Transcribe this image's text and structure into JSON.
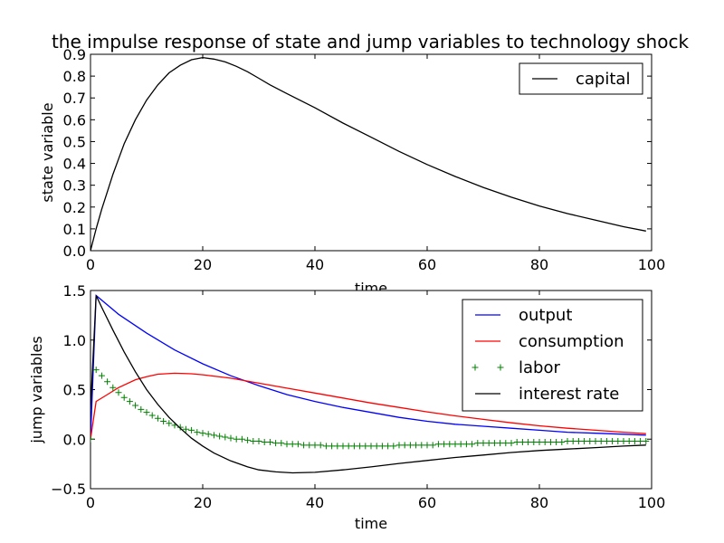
{
  "figure_title": "the impulse response of state and jump variables to technology shock",
  "chart_data": [
    {
      "type": "line",
      "title": "the impulse response of state and jump variables to technology shock",
      "xlabel": "time",
      "ylabel": "state variable",
      "xlim": [
        0,
        100
      ],
      "ylim": [
        0,
        0.9
      ],
      "xticks": [
        "0",
        "20",
        "40",
        "60",
        "80",
        "100"
      ],
      "yticks": [
        "0.0",
        "0.1",
        "0.2",
        "0.3",
        "0.4",
        "0.5",
        "0.6",
        "0.7",
        "0.8",
        "0.9"
      ],
      "legend_position": "top-right",
      "series": [
        {
          "name": "capital",
          "color": "#000000",
          "style": "line",
          "x": [
            0,
            1,
            2,
            3,
            4,
            5,
            6,
            8,
            10,
            12,
            14,
            16,
            18,
            20,
            22,
            24,
            26,
            28,
            30,
            32,
            35,
            40,
            45,
            50,
            55,
            60,
            65,
            70,
            75,
            80,
            85,
            90,
            95,
            99
          ],
          "y": [
            0.0,
            0.1,
            0.19,
            0.27,
            0.35,
            0.42,
            0.49,
            0.6,
            0.69,
            0.76,
            0.815,
            0.85,
            0.875,
            0.885,
            0.878,
            0.865,
            0.845,
            0.82,
            0.79,
            0.76,
            0.72,
            0.655,
            0.585,
            0.52,
            0.455,
            0.395,
            0.34,
            0.29,
            0.245,
            0.205,
            0.17,
            0.14,
            0.11,
            0.09
          ]
        }
      ]
    },
    {
      "type": "line",
      "xlabel": "time",
      "ylabel": "jump variables",
      "xlim": [
        0,
        100
      ],
      "ylim": [
        -0.5,
        1.5
      ],
      "xticks": [
        "0",
        "20",
        "40",
        "60",
        "80",
        "100"
      ],
      "yticks": [
        "−0.5",
        "0.0",
        "0.5",
        "1.0",
        "1.5"
      ],
      "legend_position": "top-right",
      "series": [
        {
          "name": "output",
          "color": "#0000ff",
          "style": "line",
          "x": [
            0,
            1,
            5,
            10,
            15,
            20,
            25,
            30,
            35,
            40,
            45,
            50,
            55,
            60,
            65,
            70,
            75,
            80,
            85,
            90,
            95,
            99
          ],
          "y": [
            0.0,
            1.45,
            1.26,
            1.07,
            0.9,
            0.76,
            0.64,
            0.54,
            0.45,
            0.38,
            0.32,
            0.27,
            0.22,
            0.18,
            0.15,
            0.13,
            0.11,
            0.09,
            0.07,
            0.06,
            0.05,
            0.04
          ]
        },
        {
          "name": "consumption",
          "color": "#ff0000",
          "style": "line",
          "x": [
            0,
            1,
            3,
            5,
            8,
            10,
            12,
            15,
            18,
            20,
            25,
            30,
            35,
            40,
            45,
            50,
            55,
            60,
            65,
            70,
            75,
            80,
            85,
            90,
            95,
            99
          ],
          "y": [
            0.0,
            0.38,
            0.45,
            0.52,
            0.6,
            0.63,
            0.655,
            0.665,
            0.66,
            0.65,
            0.615,
            0.565,
            0.515,
            0.465,
            0.415,
            0.365,
            0.32,
            0.275,
            0.235,
            0.2,
            0.165,
            0.135,
            0.11,
            0.09,
            0.07,
            0.055
          ]
        },
        {
          "name": "labor",
          "color": "#008000",
          "style": "markers",
          "x": [
            0,
            1,
            2,
            3,
            4,
            5,
            6,
            7,
            8,
            9,
            10,
            11,
            12,
            13,
            14,
            15,
            16,
            17,
            18,
            19,
            20,
            21,
            22,
            23,
            24,
            25,
            26,
            27,
            28,
            29,
            30,
            31,
            32,
            33,
            34,
            35,
            36,
            37,
            38,
            39,
            40,
            41,
            42,
            43,
            44,
            45,
            46,
            47,
            48,
            49,
            50,
            51,
            52,
            53,
            54,
            55,
            56,
            57,
            58,
            59,
            60,
            61,
            62,
            63,
            64,
            65,
            66,
            67,
            68,
            69,
            70,
            71,
            72,
            73,
            74,
            75,
            76,
            77,
            78,
            79,
            80,
            81,
            82,
            83,
            84,
            85,
            86,
            87,
            88,
            89,
            90,
            91,
            92,
            93,
            94,
            95,
            96,
            97,
            98,
            99
          ],
          "y": [
            0.0,
            0.7,
            0.64,
            0.58,
            0.52,
            0.47,
            0.42,
            0.38,
            0.34,
            0.3,
            0.27,
            0.24,
            0.21,
            0.18,
            0.16,
            0.14,
            0.12,
            0.1,
            0.09,
            0.07,
            0.06,
            0.05,
            0.04,
            0.03,
            0.02,
            0.01,
            0.0,
            0.0,
            -0.01,
            -0.02,
            -0.02,
            -0.03,
            -0.03,
            -0.04,
            -0.04,
            -0.05,
            -0.05,
            -0.05,
            -0.06,
            -0.06,
            -0.06,
            -0.06,
            -0.07,
            -0.07,
            -0.07,
            -0.07,
            -0.07,
            -0.07,
            -0.07,
            -0.07,
            -0.07,
            -0.07,
            -0.07,
            -0.07,
            -0.07,
            -0.06,
            -0.06,
            -0.06,
            -0.06,
            -0.06,
            -0.06,
            -0.06,
            -0.05,
            -0.05,
            -0.05,
            -0.05,
            -0.05,
            -0.05,
            -0.05,
            -0.04,
            -0.04,
            -0.04,
            -0.04,
            -0.04,
            -0.04,
            -0.04,
            -0.03,
            -0.03,
            -0.03,
            -0.03,
            -0.03,
            -0.03,
            -0.03,
            -0.03,
            -0.03,
            -0.02,
            -0.02,
            -0.02,
            -0.02,
            -0.02,
            -0.02,
            -0.02,
            -0.02,
            -0.02,
            -0.02,
            -0.02,
            -0.02,
            -0.02,
            -0.02,
            -0.02
          ]
        },
        {
          "name": "interest rate",
          "color": "#000000",
          "style": "line",
          "x": [
            0,
            1,
            2,
            4,
            6,
            8,
            10,
            12,
            14,
            16,
            18,
            20,
            22,
            25,
            28,
            30,
            33,
            36,
            40,
            45,
            50,
            55,
            60,
            65,
            70,
            75,
            80,
            85,
            90,
            95,
            99
          ],
          "y": [
            0.3,
            1.45,
            1.33,
            1.1,
            0.88,
            0.68,
            0.5,
            0.35,
            0.22,
            0.11,
            0.01,
            -0.07,
            -0.14,
            -0.22,
            -0.28,
            -0.31,
            -0.33,
            -0.34,
            -0.335,
            -0.31,
            -0.28,
            -0.245,
            -0.215,
            -0.185,
            -0.16,
            -0.135,
            -0.115,
            -0.1,
            -0.085,
            -0.07,
            -0.06
          ]
        }
      ]
    }
  ]
}
